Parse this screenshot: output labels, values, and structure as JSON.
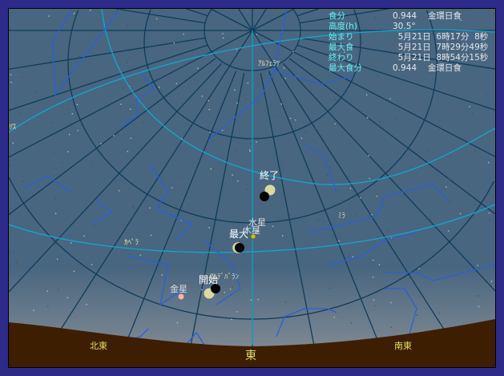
{
  "info_panel": {
    "rows": [
      {
        "label": "食分",
        "value": "0.944　 金環日食"
      },
      {
        "label": "高度(h)",
        "value": "30.5°"
      },
      {
        "label": "始まり",
        "value": "  5月21日  6時17分  8秒"
      },
      {
        "label": "最大食",
        "value": "  5月21日  7時29分49秒"
      },
      {
        "label": "終わり",
        "value": "  5月21日  8時54分15秒"
      },
      {
        "label": "最大食分",
        "value": "0.944　 金環日食"
      }
    ]
  },
  "eclipse": {
    "start_label": "開始",
    "max_label": "最大",
    "end_label": "終了"
  },
  "bodies": {
    "mercury": "水星",
    "jupiter": "木星",
    "venus": "金星"
  },
  "stars": {
    "alpheratz": "ｱﾙﾌｪﾗﾂ",
    "mira": "ﾐﾗ",
    "capella": "ｶﾍﾟﾗ",
    "aldebaran": "ｱﾙﾃﾞﾊﾞﾗﾝ",
    "polaris_partial": "ﾘｽ"
  },
  "directions": {
    "northeast": "北東",
    "east": "東",
    "southeast": "南東"
  },
  "colors": {
    "frame": "#2e2a8a",
    "sky": "#486680",
    "ground": "#3d1e00",
    "grid": "#0e3c5a",
    "ecliptic": "#10a8d0",
    "constellation": "#2a5fd8",
    "sun": "#ddd8a0",
    "direction_label": "#e0e060"
  }
}
